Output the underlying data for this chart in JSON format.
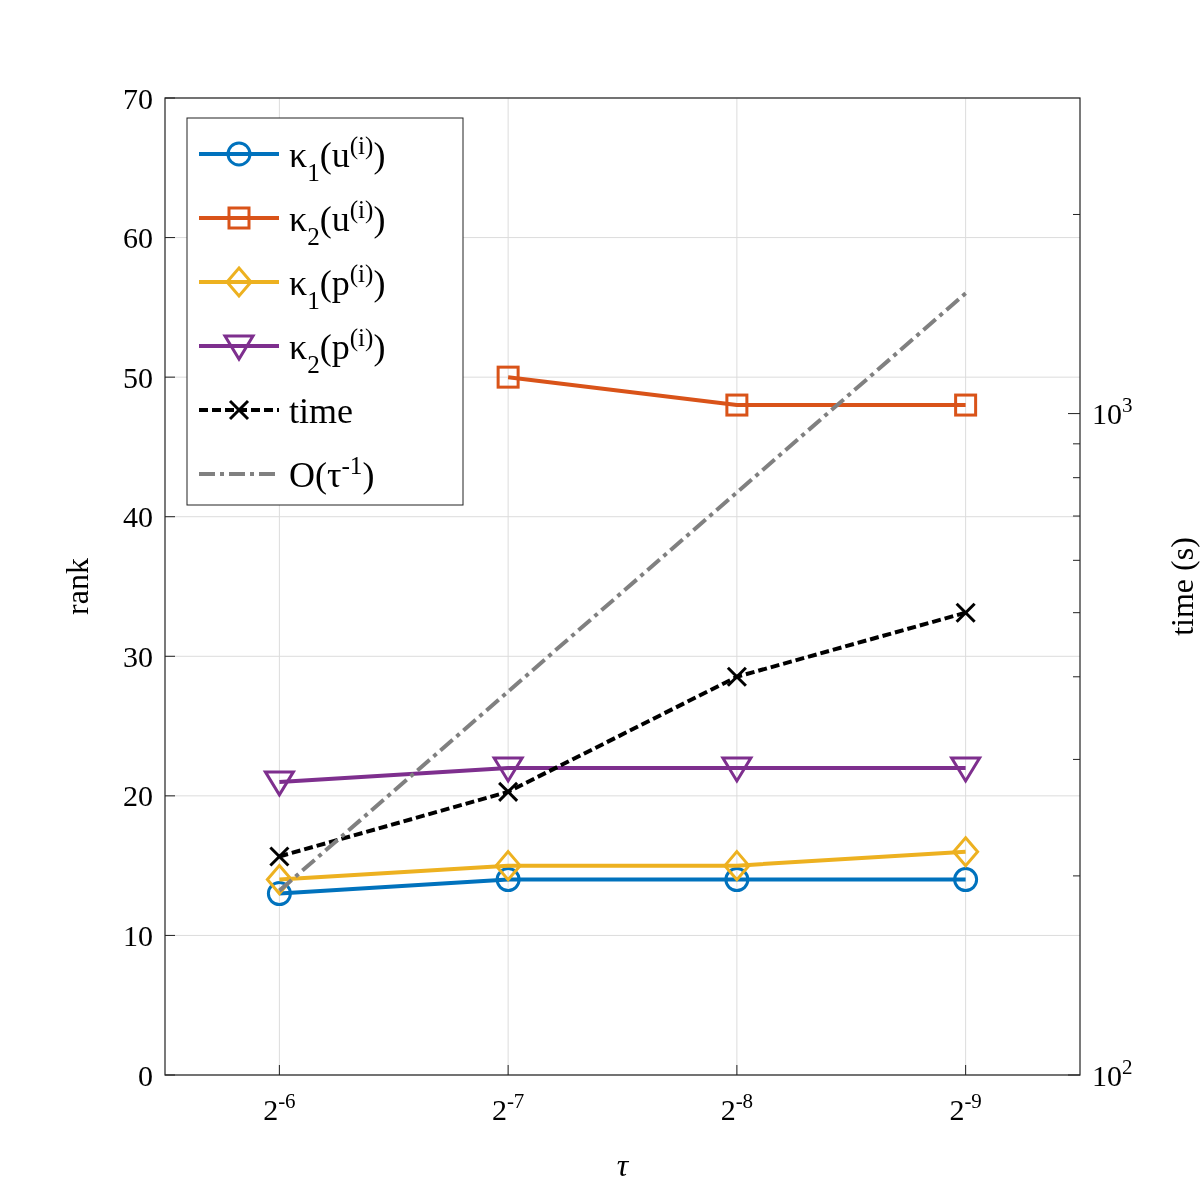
{
  "chart_data": {
    "type": "line",
    "xlabel": "τ",
    "ylabel": "rank",
    "y2label": "time (s)",
    "categories": [
      "2$^{-6}$",
      "2$^{-7}$",
      "2$^{-8}$",
      "2$^{-9}$"
    ],
    "ylim": [
      0,
      70
    ],
    "yticks": [
      0,
      10,
      20,
      30,
      40,
      50,
      60,
      70
    ],
    "y2lim": [
      100,
      3000
    ],
    "y2ticks": [
      {
        "value": 100,
        "label": "10$^{2}$"
      },
      {
        "value": 200,
        "label": null
      },
      {
        "value": 300,
        "label": null
      },
      {
        "value": 400,
        "label": null
      },
      {
        "value": 500,
        "label": null
      },
      {
        "value": 600,
        "label": null
      },
      {
        "value": 700,
        "label": null
      },
      {
        "value": 800,
        "label": null
      },
      {
        "value": 900,
        "label": null
      },
      {
        "value": 1000,
        "label": "10$^{3}$"
      },
      {
        "value": 2000,
        "label": null
      }
    ],
    "log": "y2",
    "grid": true,
    "legend": "top left",
    "line_style": "solid",
    "series": [
      {
        "name": "κ$_{1}$(u$^{(i)}$)",
        "color": "#0072bd",
        "marker": "circle",
        "values": [
          13,
          14,
          14,
          14
        ]
      },
      {
        "name": "κ$_{2}$(u$^{(i)}$)",
        "color": "#d95319",
        "marker": "square",
        "values": [
          null,
          50,
          48,
          48
        ]
      },
      {
        "name": "κ$_{1}$(p$^{(i)}$)",
        "color": "#edb120",
        "marker": "diamond",
        "values": [
          14,
          15,
          15,
          16
        ]
      },
      {
        "name": "κ$_{2}$(p$^{(i)}$)",
        "color": "#7e2f8e",
        "marker": "triangle",
        "values": [
          21,
          22,
          22,
          22
        ]
      },
      {
        "name": "time",
        "color": "#000000",
        "marker": "cross",
        "line_style": "dashed",
        "axis": "y2",
        "values": [
          214,
          268,
          400,
          500
        ]
      },
      {
        "name": "O(τ$^{-1}$)",
        "color": "#808080",
        "marker": "none",
        "line_style": "dashed",
        "axis": "y2",
        "values": [
          190,
          380,
          760,
          1520
        ]
      }
    ]
  }
}
